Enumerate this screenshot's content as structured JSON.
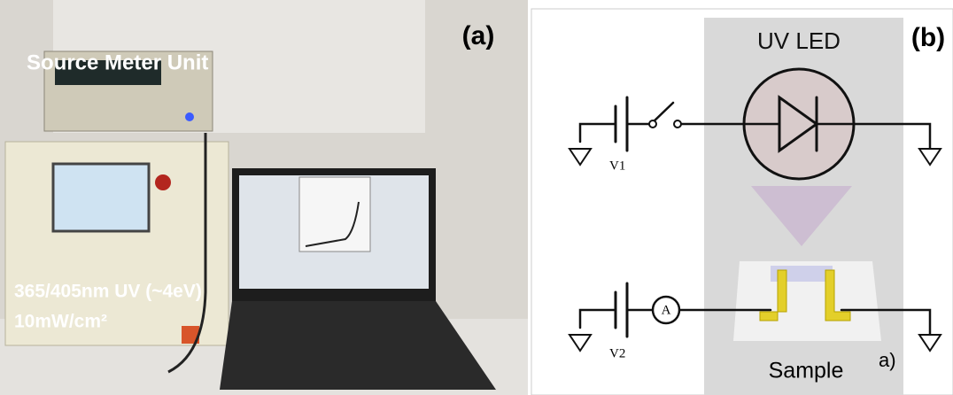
{
  "panel_a": {
    "label": "(a)",
    "instrument_label": "Source Meter Unit",
    "source_line1": "365/405nm UV (~4eV)",
    "source_line2": "10mW/cm²"
  },
  "panel_b": {
    "label": "(b)",
    "led_label": "UV LED",
    "v1": "V1",
    "v2": "V2",
    "ammeter": "A",
    "sample": "Sample",
    "sublabel": "a)"
  }
}
